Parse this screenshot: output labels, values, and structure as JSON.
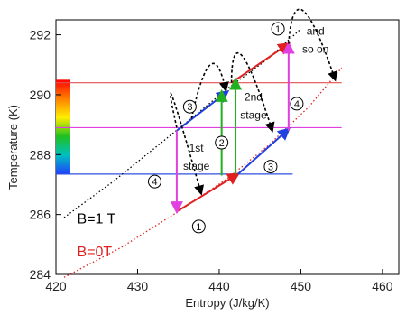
{
  "chart_data": {
    "type": "line",
    "xlabel": "Entropy (J/kg/K)",
    "ylabel": "Temperature (K)",
    "xlim": [
      420,
      462
    ],
    "ylim": [
      284,
      292.5
    ],
    "x_ticks": [
      420,
      430,
      440,
      450,
      460
    ],
    "y_ticks": [
      284,
      286,
      288,
      290,
      292
    ],
    "grid": false,
    "series": [
      {
        "name": "B=1 T",
        "color": "#000000",
        "style": "dotted",
        "x": [
          421,
          427,
          432,
          437,
          441,
          446,
          450
        ],
        "y": [
          285.9,
          287.1,
          288.2,
          289.3,
          290.2,
          291.2,
          292.2
        ]
      },
      {
        "name": "B=0T",
        "color": "#e02020",
        "style": "dotted",
        "x": [
          421,
          428,
          435,
          441,
          446,
          451,
          455
        ],
        "y": [
          283.9,
          284.9,
          286.1,
          287.2,
          288.3,
          289.6,
          290.9
        ]
      }
    ],
    "levels": [
      {
        "y": 290.4,
        "x": [
          420,
          455
        ],
        "color": "#e05050"
      },
      {
        "y": 288.9,
        "x": [
          420,
          455
        ],
        "color": "#e040e0"
      },
      {
        "y": 287.35,
        "x": [
          420,
          449
        ],
        "color": "#3050e0"
      }
    ],
    "segments": [
      {
        "label": "1",
        "color": "#e02020",
        "x": [
          434.8,
          442.3
        ],
        "y": [
          286.1,
          287.35
        ]
      },
      {
        "label": "1",
        "color": "#e02020",
        "x": [
          441.5,
          448.5
        ],
        "y": [
          290.4,
          291.7
        ]
      },
      {
        "label": "3",
        "color": "#2040e0",
        "x": [
          442.3,
          448.5
        ],
        "y": [
          287.35,
          288.85
        ]
      },
      {
        "label": "3",
        "color": "#2040e0",
        "x": [
          434.8,
          441.0
        ],
        "y": [
          288.8,
          290.1
        ]
      },
      {
        "label": "2",
        "color": "#20b020",
        "x": [
          440.3,
          440.3
        ],
        "y": [
          287.3,
          290.1
        ]
      },
      {
        "label": "2",
        "color": "#20b020",
        "x": [
          442.0,
          442.0
        ],
        "y": [
          287.35,
          290.5
        ]
      },
      {
        "label": "4",
        "color": "#e040e0",
        "x": [
          434.8,
          434.8
        ],
        "y": [
          288.8,
          286.1
        ]
      },
      {
        "label": "4",
        "color": "#e040e0",
        "x": [
          448.5,
          448.5
        ],
        "y": [
          288.8,
          291.7
        ]
      }
    ],
    "arcs": [
      {
        "from": [
          434.8,
          288.9
        ],
        "to": [
          437.8,
          286.7
        ],
        "peak": [
          434.3,
          289.9
        ]
      },
      {
        "from": [
          441.5,
          290.4
        ],
        "to": [
          446.5,
          288.8
        ],
        "peak": [
          442.8,
          291.3
        ]
      },
      {
        "from": [
          448.5,
          291.7
        ],
        "to": [
          454.2,
          290.5
        ],
        "peak": [
          450.3,
          292.8
        ]
      },
      {
        "from": [
          436.6,
          289.2
        ],
        "to": [
          440.8,
          290.15
        ],
        "peak": [
          438.9,
          291.0
        ]
      }
    ],
    "step_markers": [
      {
        "label": "1",
        "x": [
          437.5,
          447.2
        ],
        "y": [
          285.6,
          292.2
        ]
      },
      {
        "label": "2",
        "x": [
          440.3
        ],
        "y": [
          288.4
        ]
      },
      {
        "label": "3",
        "x": [
          436.4,
          446.3
        ],
        "y": [
          289.6,
          287.6
        ]
      },
      {
        "label": "4",
        "x": [
          432.1,
          449.5
        ],
        "y": [
          287.1,
          289.7
        ]
      }
    ],
    "annotations": [
      {
        "text": "1st",
        "x": 437.2,
        "y": 288.1
      },
      {
        "text": "stage",
        "x": 437.2,
        "y": 287.5
      },
      {
        "text": "2nd",
        "x": 444.2,
        "y": 289.8
      },
      {
        "text": "stage",
        "x": 444.2,
        "y": 289.2
      },
      {
        "text": "and",
        "x": 451.8,
        "y": 292.0
      },
      {
        "text": "so on",
        "x": 451.8,
        "y": 291.4
      }
    ],
    "field_labels": [
      {
        "text": "B=1 T",
        "x": 422.6,
        "y": 285.7,
        "color": "#000000"
      },
      {
        "text": "B=0T",
        "x": 422.6,
        "y": 284.6,
        "color": "#e02020"
      }
    ],
    "temperature_bar": {
      "y_range": [
        287.35,
        290.5
      ],
      "colors": [
        "#ff0000",
        "#ff8000",
        "#ffee00",
        "#20c020",
        "#00c0c0",
        "#2040ff"
      ]
    }
  }
}
